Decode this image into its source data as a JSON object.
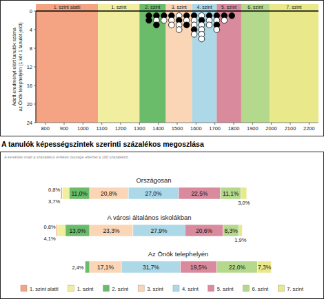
{
  "chart_data": [
    {
      "type": "scatter",
      "y_label": [
        "Adott eredményt elért tanulók száma",
        "az Önök telephelyén (1 kör 1 tanulót jelöl)"
      ],
      "marker": "circle",
      "xlim": [
        750,
        2250
      ],
      "xticks": [
        800,
        900,
        1000,
        1100,
        1200,
        1300,
        1400,
        1500,
        1600,
        1700,
        1800,
        1900,
        2000,
        2100,
        2200
      ],
      "ylim": [
        24,
        0
      ],
      "yticks": [
        0,
        4,
        8,
        12,
        16,
        20,
        24
      ],
      "bands": [
        {
          "label": "1. szint alatti",
          "from": 750,
          "to": 1080,
          "color": "#f4a482"
        },
        {
          "label": "1. szint",
          "from": 1080,
          "to": 1300,
          "color": "#f1ee9f"
        },
        {
          "label": "2. szint",
          "from": 1300,
          "to": 1440,
          "color": "#6abb6a"
        },
        {
          "label": "3. szint",
          "from": 1440,
          "to": 1580,
          "color": "#fad6b6"
        },
        {
          "label": "4. szint",
          "from": 1580,
          "to": 1710,
          "color": "#acd8e7"
        },
        {
          "label": "5. szint",
          "from": 1710,
          "to": 1840,
          "color": "#d98a9d"
        },
        {
          "label": "6. szint",
          "from": 1840,
          "to": 1990,
          "color": "#b4d98c"
        },
        {
          "label": "7. szint",
          "from": 1990,
          "to": 2250,
          "color": "#e9e98c"
        }
      ],
      "x": [
        1350,
        1350,
        1390,
        1390,
        1390,
        1430,
        1430,
        1470,
        1470,
        1470,
        1510,
        1510,
        1510,
        1510,
        1550,
        1550,
        1550,
        1590,
        1590,
        1590,
        1590,
        1590,
        1630,
        1630,
        1630,
        1630,
        1630,
        1630,
        1670,
        1670,
        1670,
        1710,
        1710,
        1710,
        1710,
        1750,
        1750,
        1790
      ],
      "values": [
        1,
        2,
        1,
        2,
        3,
        1,
        2,
        1,
        2,
        3,
        1,
        2,
        3,
        4,
        1,
        2,
        3,
        1,
        2,
        3,
        4,
        5,
        1,
        2,
        3,
        4,
        5,
        6,
        1,
        2,
        3,
        1,
        2,
        3,
        4,
        1,
        2,
        1
      ],
      "colors": [
        "#000000",
        "#000000",
        "#000000",
        "#ffffff",
        "#000000",
        "#000000",
        "#ffffff",
        "#000000",
        "#ffffff",
        "#ffffff",
        "#ffffff",
        "#000000",
        "#ffffff",
        "#ffffff",
        "#000000",
        "#ffffff",
        "#000000",
        "#000000",
        "#ffffff",
        "#ffffff",
        "#000000",
        "#ffffff",
        "#ffffff",
        "#000000",
        "#ffffff",
        "#ffffff",
        "#ffffff",
        "#ffffff",
        "#000000",
        "#ffffff",
        "#ffffff",
        "#000000",
        "#ffffff",
        "#000000",
        "#ffffff",
        "#000000",
        "#ffffff",
        "#000000"
      ]
    },
    {
      "type": "bar",
      "orientation": "horizontal",
      "stacked": true,
      "data_labels": true,
      "tick_labels": false,
      "legend": "bottom",
      "title": "A tanulók képességszintek szerinti százalékos megoszlása",
      "subtitle": "A kerekítés miatt a százalékos értékek összege eltérhet a 100 százaléktól.",
      "categories": [
        "Országosan",
        "A városi általános iskolákban",
        "Az Önök telephelyén"
      ],
      "xlim": [
        0,
        100
      ],
      "series": [
        {
          "name": "1. szint alatti",
          "color": "#f4a482",
          "values": [
            0.8,
            0.8,
            0
          ],
          "value_labels": [
            "0,8%",
            "0,8%",
            null
          ]
        },
        {
          "name": "1. szint",
          "color": "#f1ee9f",
          "values": [
            3.7,
            4.1,
            0
          ],
          "value_labels": [
            "3,7%",
            "4,1%",
            null
          ]
        },
        {
          "name": "2. szint",
          "color": "#6abb6a",
          "values": [
            11.0,
            13.0,
            2.4
          ],
          "value_labels": [
            "11,0%",
            "13,0%",
            "2,4%"
          ]
        },
        {
          "name": "3. szint",
          "color": "#fad6b6",
          "values": [
            20.8,
            23.3,
            17.1
          ],
          "value_labels": [
            "20,8%",
            "23,3%",
            "17,1%"
          ]
        },
        {
          "name": "4. szint",
          "color": "#acd8e7",
          "values": [
            27.0,
            27.9,
            31.7
          ],
          "value_labels": [
            "27,0%",
            "27,9%",
            "31,7%"
          ]
        },
        {
          "name": "5. szint",
          "color": "#d98a9d",
          "values": [
            22.5,
            20.6,
            19.5
          ],
          "value_labels": [
            "22,5%",
            "20,6%",
            "19,5%"
          ]
        },
        {
          "name": "6. szint",
          "color": "#b4d98c",
          "values": [
            11.1,
            8.3,
            22.0
          ],
          "value_labels": [
            "11,1%",
            "8,3%",
            "22,0%"
          ]
        },
        {
          "name": "7. szint",
          "color": "#e9e98c",
          "values": [
            3.0,
            1.9,
            7.3
          ],
          "value_labels": [
            "3,0%",
            "1,9%",
            "7,3%"
          ]
        }
      ]
    }
  ]
}
